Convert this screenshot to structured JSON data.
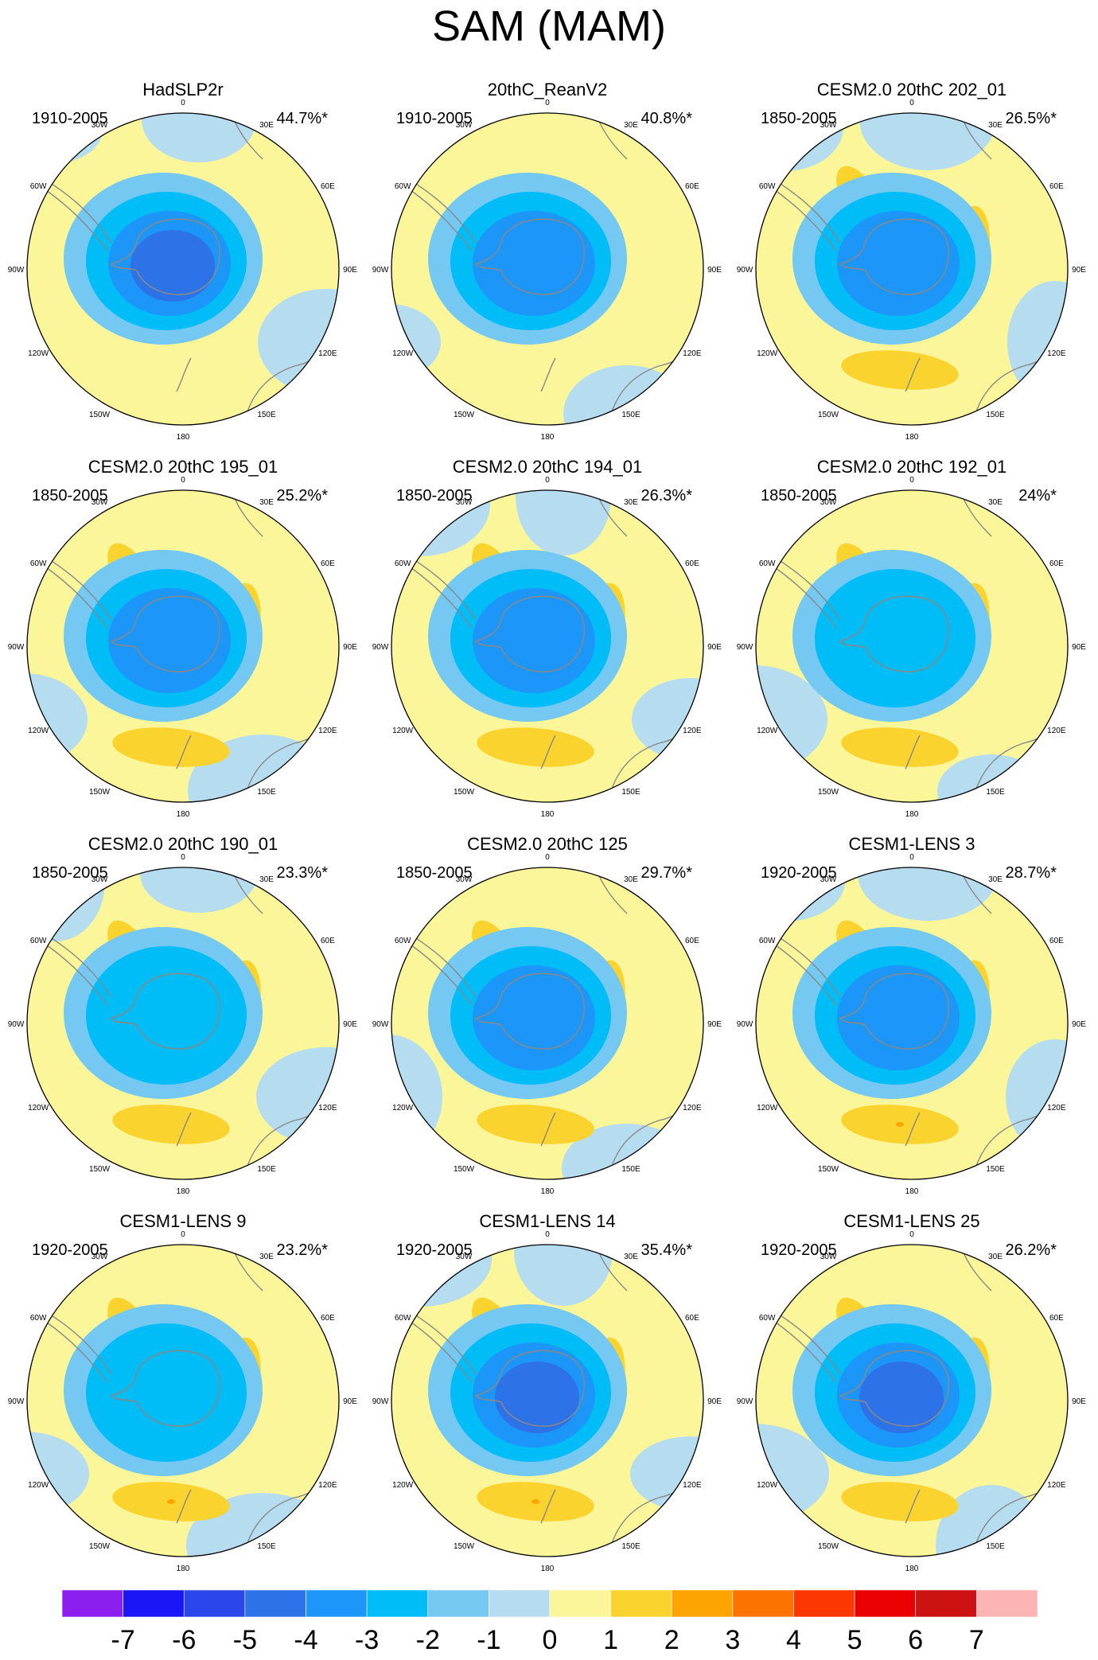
{
  "title": "SAM (MAM)",
  "chart_data": {
    "type": "polar-stereographic contour maps (12 panels)",
    "projection": "Southern Hemisphere polar stereographic",
    "lon_labels": [
      "0",
      "30E",
      "60E",
      "90E",
      "120E",
      "150E",
      "180",
      "150W",
      "120W",
      "90W",
      "60W",
      "30W"
    ],
    "panels": [
      {
        "title": "HadSLP2r",
        "years": "1910-2005",
        "pct": "44.7%*",
        "center": "-4",
        "blobs": []
      },
      {
        "title": "20thC_ReanV2",
        "years": "1910-2005",
        "pct": "40.8%*",
        "center": "-3",
        "blobs": []
      },
      {
        "title": "CESM2.0 20thC 202_01",
        "years": "1850-2005",
        "pct": "26.5%*",
        "center": "-3",
        "blobs": [
          1,
          1,
          1
        ]
      },
      {
        "title": "CESM2.0 20thC 195_01",
        "years": "1850-2005",
        "pct": "25.2%*",
        "center": "-3",
        "blobs": [
          1,
          1,
          1
        ]
      },
      {
        "title": "CESM2.0 20thC 194_01",
        "years": "1850-2005",
        "pct": "26.3%*",
        "center": "-3",
        "blobs": [
          1,
          1,
          1
        ]
      },
      {
        "title": "CESM2.0 20thC 192_01",
        "years": "1850-2005",
        "pct": "24%*",
        "center": "-2",
        "blobs": [
          1,
          1,
          1
        ]
      },
      {
        "title": "CESM2.0 20thC 190_01",
        "years": "1850-2005",
        "pct": "23.3%*",
        "center": "-2",
        "blobs": [
          1,
          1,
          1
        ]
      },
      {
        "title": "CESM2.0 20thC 125",
        "years": "1850-2005",
        "pct": "29.7%*",
        "center": "-3",
        "blobs": [
          1,
          1,
          1
        ]
      },
      {
        "title": "CESM1-LENS 3",
        "years": "1920-2005",
        "pct": "28.7%*",
        "center": "-3",
        "blobs": [
          1,
          1,
          2
        ]
      },
      {
        "title": "CESM1-LENS 9",
        "years": "1920-2005",
        "pct": "23.2%*",
        "center": "-2",
        "blobs": [
          1,
          1,
          2
        ]
      },
      {
        "title": "CESM1-LENS 14",
        "years": "1920-2005",
        "pct": "35.4%*",
        "center": "-4",
        "blobs": [
          1,
          1,
          2
        ]
      },
      {
        "title": "CESM1-LENS 25",
        "years": "1920-2005",
        "pct": "26.2%*",
        "center": "-4",
        "blobs": [
          1,
          1,
          1
        ]
      }
    ],
    "colorbar": {
      "labels": [
        "-7",
        "-6",
        "-5",
        "-4",
        "-3",
        "-2",
        "-1",
        "0",
        "1",
        "2",
        "3",
        "4",
        "5",
        "6",
        "7"
      ],
      "colors": [
        "#8a1ff0",
        "#1a16f7",
        "#2b46ea",
        "#2e72e8",
        "#1c96f8",
        "#00bcf7",
        "#74c8f2",
        "#b6dcf0",
        "#fbf699",
        "#fbd32e",
        "#fda400",
        "#fc7302",
        "#fc3702",
        "#ea0000",
        "#cc1212",
        "#fcb4b4"
      ]
    }
  },
  "colors": {
    "land": "#888888",
    "zero_pos": "#fbf699",
    "zero_neg": "#b6dcf0"
  }
}
